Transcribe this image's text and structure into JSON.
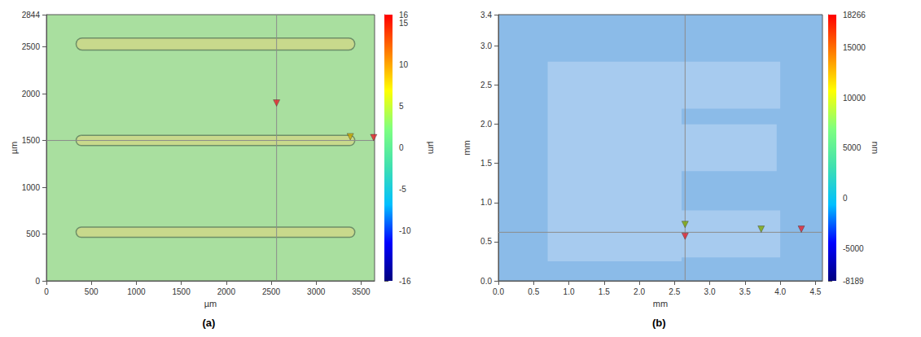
{
  "chart_data": [
    {
      "type": "surface_map",
      "panel_label": "(a)",
      "x_label": "µm",
      "y_label": "µm",
      "xlim": [
        0,
        3650
      ],
      "xticks": [
        0,
        500,
        1000,
        1500,
        2000,
        2500,
        3000,
        3500
      ],
      "ylim": [
        0,
        2844
      ],
      "yticks": [
        0,
        500,
        1000,
        1500,
        2000,
        2500,
        2844
      ],
      "background": "#a9df9f",
      "regions": [],
      "tracks": [
        {
          "x0": 330,
          "x1": 3430,
          "y_center": 2530,
          "thickness": 130,
          "color": "#c8d98c",
          "edge_color": "#6e8f68"
        },
        {
          "x0": 330,
          "x1": 3430,
          "y_center": 1500,
          "thickness": 110,
          "color": "#c8d98c",
          "edge_color": "#6e8f68"
        },
        {
          "x0": 330,
          "x1": 3430,
          "y_center": 520,
          "thickness": 110,
          "color": "#c8d98c",
          "edge_color": "#6e8f68"
        }
      ],
      "crosshair": {
        "x": 2560,
        "y": 1500,
        "color": "#8c8c8c"
      },
      "markers": [
        {
          "x": 2560,
          "y": 1900,
          "color": "#e8202a"
        },
        {
          "x": 3380,
          "y": 1540,
          "color": "#c8a800"
        },
        {
          "x": 3640,
          "y": 1530,
          "color": "#e8202a"
        }
      ],
      "colorbar": {
        "label": "µm",
        "range": [
          -16,
          16
        ],
        "ticks": [
          -16,
          -10,
          -5,
          0,
          5,
          10,
          15,
          16
        ],
        "colors": [
          "#00007f",
          "#0000ff",
          "#00bfff",
          "#40e0b0",
          "#7fff7f",
          "#ffff00",
          "#ff7f00",
          "#ff0000"
        ]
      }
    },
    {
      "type": "surface_map",
      "panel_label": "(b)",
      "x_label": "mm",
      "y_label": "mm",
      "xlim": [
        0,
        4.6
      ],
      "xticks": [
        {
          "value": 0,
          "label": "0.0"
        },
        0.5,
        {
          "value": 1,
          "label": "1.0"
        },
        1.5,
        {
          "value": 2,
          "label": "2.0"
        },
        2.5,
        {
          "value": 3,
          "label": "3.0"
        },
        3.5,
        {
          "value": 4,
          "label": "4.0"
        },
        4.5
      ],
      "ylim": [
        0,
        3.4
      ],
      "yticks": [
        {
          "value": 0,
          "label": "0.0"
        },
        0.5,
        {
          "value": 1,
          "label": "1.0"
        },
        1.5,
        {
          "value": 2,
          "label": "2.0"
        },
        2.5,
        {
          "value": 3,
          "label": "3.0"
        },
        3.4
      ],
      "background": "#8bbbe8",
      "regions": [
        {
          "x0": 0.7,
          "x1": 2.6,
          "y0": 0.25,
          "y1": 2.8,
          "color": "#a7cbef"
        },
        {
          "x0": 2.6,
          "x1": 4.0,
          "y0": 2.2,
          "y1": 2.8,
          "color": "#a7cbef"
        },
        {
          "x0": 2.6,
          "x1": 3.95,
          "y0": 1.4,
          "y1": 2.0,
          "color": "#a7cbef"
        },
        {
          "x0": 2.6,
          "x1": 4.0,
          "y0": 0.3,
          "y1": 0.9,
          "color": "#a7cbef"
        }
      ],
      "tracks": [],
      "crosshair": {
        "x": 2.65,
        "y": 0.62,
        "color": "#8c8c8c"
      },
      "markers": [
        {
          "x": 2.65,
          "y": 0.72,
          "color": "#7fa800"
        },
        {
          "x": 2.65,
          "y": 0.57,
          "color": "#e8202a"
        },
        {
          "x": 3.73,
          "y": 0.66,
          "color": "#7fa800"
        },
        {
          "x": 4.3,
          "y": 0.66,
          "color": "#e8202a"
        }
      ],
      "colorbar": {
        "label": "nm",
        "range": [
          -8189,
          18266
        ],
        "ticks": [
          -8189,
          -5000,
          0,
          5000,
          10000,
          15000,
          18266
        ],
        "colors": [
          "#00007f",
          "#0000ff",
          "#00bfff",
          "#40e0b0",
          "#7fff7f",
          "#ffff00",
          "#ff7f00",
          "#ff0000"
        ]
      }
    }
  ]
}
